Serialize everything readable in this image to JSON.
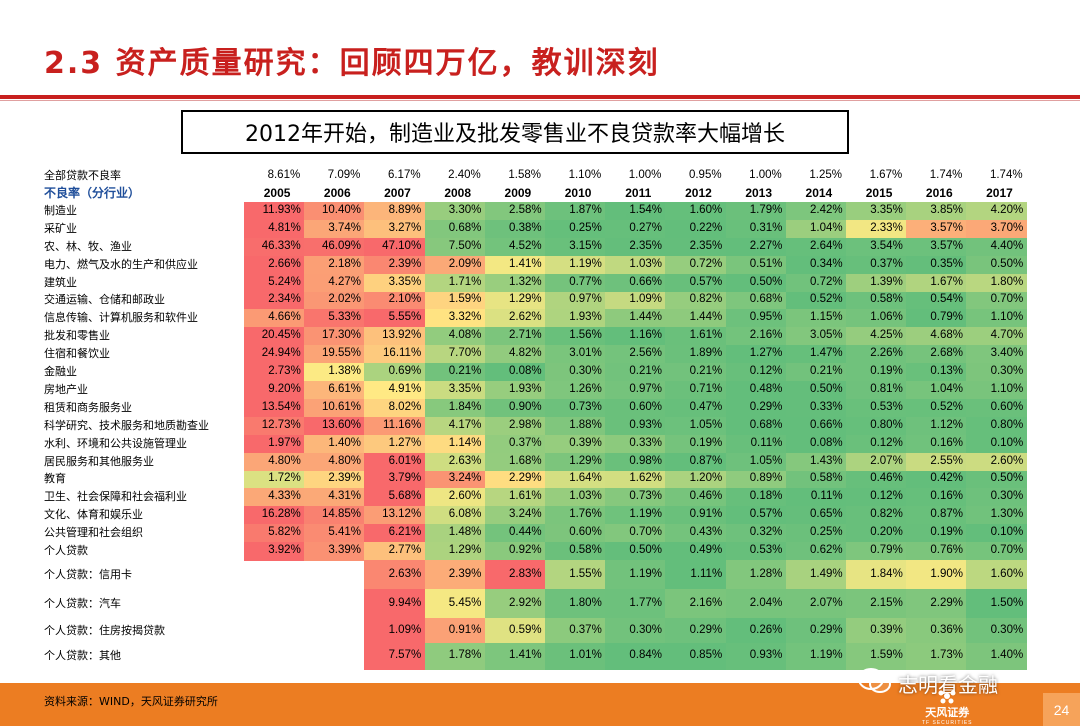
{
  "title": "2.3 资产质量研究：回顾四万亿，教训深刻",
  "subtitle": "2012年开始，制造业及批发零售业不良贷款率大幅增长",
  "table": {
    "overall_label": "全部贷款不良率",
    "overall_rates": [
      "8.61%",
      "7.09%",
      "6.17%",
      "2.40%",
      "1.58%",
      "1.10%",
      "1.00%",
      "0.95%",
      "1.00%",
      "1.25%",
      "1.67%",
      "1.74%",
      "1.74%"
    ],
    "header_label": "不良率（分行业）",
    "years": [
      "2005",
      "2006",
      "2007",
      "2008",
      "2009",
      "2010",
      "2011",
      "2012",
      "2013",
      "2014",
      "2015",
      "2016",
      "2017"
    ],
    "rows": [
      {
        "label": "制造业",
        "values": [
          "11.93%",
          "10.40%",
          "8.89%",
          "3.30%",
          "2.58%",
          "1.87%",
          "1.54%",
          "1.60%",
          "1.79%",
          "2.42%",
          "3.35%",
          "3.85%",
          "4.20%"
        ]
      },
      {
        "label": "采矿业",
        "values": [
          "4.81%",
          "3.74%",
          "3.27%",
          "0.68%",
          "0.38%",
          "0.25%",
          "0.27%",
          "0.22%",
          "0.31%",
          "1.04%",
          "2.33%",
          "3.57%",
          "3.70%"
        ]
      },
      {
        "label": "农、林、牧、渔业",
        "values": [
          "46.33%",
          "46.09%",
          "47.10%",
          "7.50%",
          "4.52%",
          "3.15%",
          "2.35%",
          "2.35%",
          "2.27%",
          "2.64%",
          "3.54%",
          "3.57%",
          "4.40%"
        ]
      },
      {
        "label": "电力、燃气及水的生产和供应业",
        "values": [
          "2.66%",
          "2.18%",
          "2.39%",
          "2.09%",
          "1.41%",
          "1.19%",
          "1.03%",
          "0.72%",
          "0.51%",
          "0.34%",
          "0.37%",
          "0.35%",
          "0.50%"
        ]
      },
      {
        "label": "建筑业",
        "values": [
          "5.24%",
          "4.27%",
          "3.35%",
          "1.71%",
          "1.32%",
          "0.77%",
          "0.66%",
          "0.57%",
          "0.50%",
          "0.72%",
          "1.39%",
          "1.67%",
          "1.80%"
        ]
      },
      {
        "label": "交通运输、仓储和邮政业",
        "values": [
          "2.34%",
          "2.02%",
          "2.10%",
          "1.59%",
          "1.29%",
          "0.97%",
          "1.09%",
          "0.82%",
          "0.68%",
          "0.52%",
          "0.58%",
          "0.54%",
          "0.70%"
        ]
      },
      {
        "label": "信息传输、计算机服务和软件业",
        "values": [
          "4.66%",
          "5.33%",
          "5.55%",
          "3.32%",
          "2.62%",
          "1.93%",
          "1.44%",
          "1.44%",
          "0.95%",
          "1.15%",
          "1.06%",
          "0.79%",
          "1.10%"
        ]
      },
      {
        "label": "批发和零售业",
        "values": [
          "20.45%",
          "17.30%",
          "13.92%",
          "4.08%",
          "2.71%",
          "1.56%",
          "1.16%",
          "1.61%",
          "2.16%",
          "3.05%",
          "4.25%",
          "4.68%",
          "4.70%"
        ]
      },
      {
        "label": "住宿和餐饮业",
        "values": [
          "24.94%",
          "19.55%",
          "16.11%",
          "7.70%",
          "4.82%",
          "3.01%",
          "2.56%",
          "1.89%",
          "1.27%",
          "1.47%",
          "2.26%",
          "2.68%",
          "3.40%"
        ]
      },
      {
        "label": "金融业",
        "values": [
          "2.73%",
          "1.38%",
          "0.69%",
          "0.21%",
          "0.08%",
          "0.30%",
          "0.21%",
          "0.21%",
          "0.12%",
          "0.21%",
          "0.19%",
          "0.13%",
          "0.30%"
        ]
      },
      {
        "label": "房地产业",
        "values": [
          "9.20%",
          "6.61%",
          "4.91%",
          "3.35%",
          "1.93%",
          "1.26%",
          "0.97%",
          "0.71%",
          "0.48%",
          "0.50%",
          "0.81%",
          "1.04%",
          "1.10%"
        ]
      },
      {
        "label": "租赁和商务服务业",
        "values": [
          "13.54%",
          "10.61%",
          "8.02%",
          "1.84%",
          "0.90%",
          "0.73%",
          "0.60%",
          "0.47%",
          "0.29%",
          "0.33%",
          "0.53%",
          "0.52%",
          "0.60%"
        ]
      },
      {
        "label": "科学研究、技术服务和地质勘查业",
        "values": [
          "12.73%",
          "13.60%",
          "11.16%",
          "4.17%",
          "2.98%",
          "1.88%",
          "0.93%",
          "1.05%",
          "0.68%",
          "0.66%",
          "0.80%",
          "1.12%",
          "0.80%"
        ]
      },
      {
        "label": "水利、环境和公共设施管理业",
        "values": [
          "1.97%",
          "1.40%",
          "1.27%",
          "1.14%",
          "0.37%",
          "0.39%",
          "0.33%",
          "0.19%",
          "0.11%",
          "0.08%",
          "0.12%",
          "0.16%",
          "0.10%"
        ]
      },
      {
        "label": "居民服务和其他服务业",
        "values": [
          "4.80%",
          "4.80%",
          "6.01%",
          "2.63%",
          "1.68%",
          "1.29%",
          "0.98%",
          "0.87%",
          "1.05%",
          "1.43%",
          "2.07%",
          "2.55%",
          "2.60%"
        ]
      },
      {
        "label": "教育",
        "values": [
          "1.72%",
          "2.39%",
          "3.79%",
          "3.24%",
          "2.29%",
          "1.64%",
          "1.62%",
          "1.20%",
          "0.89%",
          "0.58%",
          "0.46%",
          "0.42%",
          "0.50%"
        ]
      },
      {
        "label": "卫生、社会保障和社会福利业",
        "values": [
          "4.33%",
          "4.31%",
          "5.68%",
          "2.60%",
          "1.61%",
          "1.03%",
          "0.73%",
          "0.46%",
          "0.18%",
          "0.11%",
          "0.12%",
          "0.16%",
          "0.30%"
        ]
      },
      {
        "label": "文化、体育和娱乐业",
        "values": [
          "16.28%",
          "14.85%",
          "13.12%",
          "6.08%",
          "3.24%",
          "1.76%",
          "1.19%",
          "0.91%",
          "0.57%",
          "0.65%",
          "0.82%",
          "0.87%",
          "1.30%"
        ]
      },
      {
        "label": "公共管理和社会组织",
        "values": [
          "5.82%",
          "5.41%",
          "6.21%",
          "1.48%",
          "0.44%",
          "0.60%",
          "0.70%",
          "0.43%",
          "0.32%",
          "0.25%",
          "0.20%",
          "0.19%",
          "0.10%"
        ]
      },
      {
        "label": "个人贷款",
        "values": [
          "3.92%",
          "3.39%",
          "2.77%",
          "1.29%",
          "0.92%",
          "0.58%",
          "0.50%",
          "0.49%",
          "0.53%",
          "0.62%",
          "0.79%",
          "0.76%",
          "0.70%"
        ]
      },
      {
        "label": "个人贷款：信用卡",
        "values": [
          "",
          "",
          "2.63%",
          "2.39%",
          "2.83%",
          "1.55%",
          "1.19%",
          "1.11%",
          "1.28%",
          "1.49%",
          "1.84%",
          "1.90%",
          "1.60%"
        ]
      },
      {
        "label": "个人贷款：汽车",
        "values": [
          "",
          "",
          "9.94%",
          "5.45%",
          "2.92%",
          "1.80%",
          "1.77%",
          "2.16%",
          "2.04%",
          "2.07%",
          "2.15%",
          "2.29%",
          "1.50%"
        ]
      },
      {
        "label": "个人贷款：住房按揭贷款",
        "values": [
          "",
          "",
          "1.09%",
          "0.91%",
          "0.59%",
          "0.37%",
          "0.30%",
          "0.29%",
          "0.26%",
          "0.29%",
          "0.39%",
          "0.36%",
          "0.30%"
        ]
      },
      {
        "label": "个人贷款：其他",
        "values": [
          "",
          "",
          "7.57%",
          "1.78%",
          "1.41%",
          "1.01%",
          "0.84%",
          "0.85%",
          "0.93%",
          "1.19%",
          "1.59%",
          "1.73%",
          "1.40%"
        ]
      }
    ]
  },
  "colors": {
    "accent_red": "#c8201e",
    "footer_orange": "#ec7d22",
    "scale_low": "#63be7b",
    "scale_mid": "#ffeb84",
    "scale_high": "#f8696b"
  },
  "footer": {
    "source": "资料来源：WIND，天风证券研究所",
    "watermark": "志明看金融",
    "watermark_icon": "wechat-icon",
    "brand_name": "天风证券",
    "brand_sub": "TF SECURITIES",
    "page_number": "24"
  }
}
